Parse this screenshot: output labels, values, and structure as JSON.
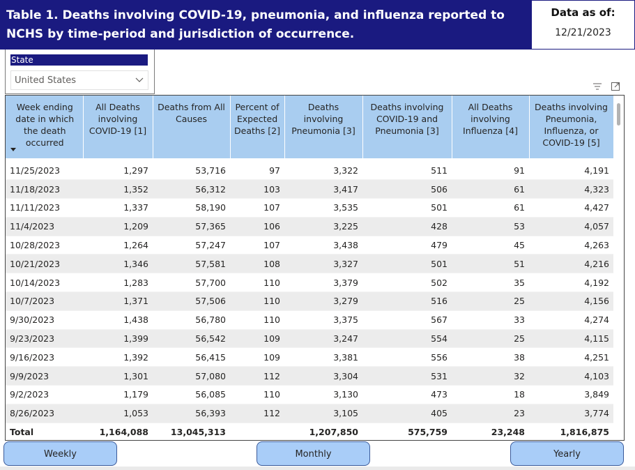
{
  "header": {
    "title": "Table 1. Deaths involving COVID-19, pneumonia, and influenza reported to NCHS by time-period and jurisdiction of occurrence.",
    "asof_label": "Data as of:",
    "asof_value": "12/21/2023"
  },
  "slicer": {
    "label": "State",
    "selected": "United States"
  },
  "icons": [
    "filter-icon",
    "focus-mode-icon",
    "chevron-down-icon",
    "sort-descending-icon"
  ],
  "colors": {
    "title_bg": "#1a1a80",
    "header_bg": "#a9cdf0",
    "button_bg": "#a9cdf8"
  },
  "table": {
    "columns": [
      "Week ending date in which the death occurred",
      "All Deaths involving COVID-19 [1]",
      "Deaths from All Causes",
      "Percent of Expected Deaths [2]",
      "Deaths involving Pneumonia [3]",
      "Deaths involving COVID-19 and Pneumonia [3]",
      "All Deaths involving Influenza [4]",
      "Deaths involving Pneumonia, Influenza, or COVID-19 [5]"
    ],
    "rows": [
      [
        "11/25/2023",
        "1,297",
        "53,716",
        "97",
        "3,322",
        "511",
        "91",
        "4,191"
      ],
      [
        "11/18/2023",
        "1,352",
        "56,312",
        "103",
        "3,417",
        "506",
        "61",
        "4,323"
      ],
      [
        "11/11/2023",
        "1,337",
        "58,190",
        "107",
        "3,535",
        "501",
        "61",
        "4,427"
      ],
      [
        "11/4/2023",
        "1,209",
        "57,365",
        "106",
        "3,225",
        "428",
        "53",
        "4,057"
      ],
      [
        "10/28/2023",
        "1,264",
        "57,247",
        "107",
        "3,438",
        "479",
        "45",
        "4,263"
      ],
      [
        "10/21/2023",
        "1,346",
        "57,581",
        "108",
        "3,327",
        "501",
        "51",
        "4,216"
      ],
      [
        "10/14/2023",
        "1,283",
        "57,700",
        "110",
        "3,379",
        "502",
        "35",
        "4,192"
      ],
      [
        "10/7/2023",
        "1,371",
        "57,506",
        "110",
        "3,279",
        "516",
        "25",
        "4,156"
      ],
      [
        "9/30/2023",
        "1,438",
        "56,780",
        "110",
        "3,375",
        "567",
        "33",
        "4,274"
      ],
      [
        "9/23/2023",
        "1,399",
        "56,542",
        "109",
        "3,247",
        "554",
        "25",
        "4,115"
      ],
      [
        "9/16/2023",
        "1,392",
        "56,415",
        "109",
        "3,381",
        "556",
        "38",
        "4,251"
      ],
      [
        "9/9/2023",
        "1,301",
        "57,080",
        "112",
        "3,304",
        "531",
        "32",
        "4,103"
      ],
      [
        "9/2/2023",
        "1,179",
        "56,085",
        "110",
        "3,130",
        "473",
        "18",
        "3,849"
      ],
      [
        "8/26/2023",
        "1,053",
        "56,393",
        "112",
        "3,105",
        "405",
        "23",
        "3,774"
      ]
    ],
    "total": [
      "Total",
      "1,164,088",
      "13,045,313",
      "",
      "1,207,850",
      "575,759",
      "23,248",
      "1,816,875"
    ]
  },
  "buttons": {
    "weekly": "Weekly",
    "monthly": "Monthly",
    "yearly": "Yearly"
  }
}
